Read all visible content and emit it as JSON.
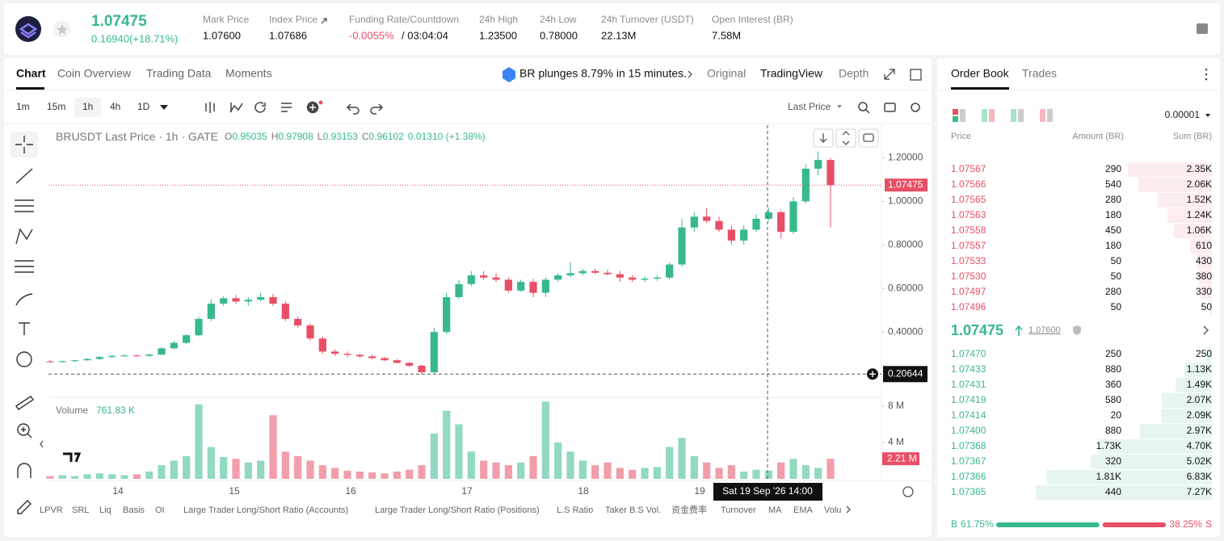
{
  "header": {
    "price": "1.07475",
    "change": "0.16940(+18.71%)",
    "stats": [
      {
        "label": "Mark Price",
        "value": "1.07600"
      },
      {
        "label": "Index Price",
        "value": "1.07686"
      },
      {
        "label": "Funding Rate/Countdown",
        "value": "-0.0055%",
        "extra": "/ 03:04:04"
      },
      {
        "label": "24h High",
        "value": "1.23500"
      },
      {
        "label": "24h Low",
        "value": "0.78000"
      },
      {
        "label": "24h Turnover (USDT)",
        "value": "22.13M"
      },
      {
        "label": "Open Interest (BR)",
        "value": "7.58M"
      }
    ]
  },
  "chart_tabs": [
    "Chart",
    "Coin Overview",
    "Trading Data",
    "Moments"
  ],
  "news": "BR plunges 8.79% in 15 minutes.",
  "view_tabs": [
    "Original",
    "TradingView",
    "Depth"
  ],
  "intervals": [
    "1m",
    "15m",
    "1h",
    "4h",
    "1D"
  ],
  "price_type": "Last Price",
  "legend": {
    "symbol": "BRUSDT Last Price · 1h · GATE",
    "fields": [
      [
        "O",
        "0.95035"
      ],
      [
        "H",
        "0.97908"
      ],
      [
        "L",
        "0.93153"
      ],
      [
        "C",
        "0.96102"
      ]
    ],
    "change": "0.01310 (+1.38%)"
  },
  "volume_title": "Volume",
  "volume_value": "761.83 K",
  "indicators": [
    "LPVR",
    "SRL",
    "Liq",
    "Basis",
    "OI",
    "Large Trader Long/Short Ratio (Accounts)",
    "Large Trader Long/Short Ratio (Positions)",
    "L.S Ratio",
    "Taker B.S Vol.",
    "资金费率",
    "Turnover",
    "MA",
    "EMA",
    "Volu"
  ],
  "chart_data": {
    "type": "candlestick",
    "up_color": "#37b98a",
    "down_color": "#e84f65",
    "ylim": [
      0.1,
      1.35
    ],
    "yticks": [
      {
        "value": 1.2,
        "label": "1.20000"
      },
      {
        "value": 1,
        "label": "1.00000"
      },
      {
        "value": 0.8,
        "label": "0.80000"
      },
      {
        "value": 0.6,
        "label": "0.60000"
      },
      {
        "value": 0.4,
        "label": "0.40000"
      }
    ],
    "x_labels": [
      "14",
      "15",
      "16",
      "17",
      "18",
      "19"
    ],
    "ohlc": [
      [
        0.265,
        0.27,
        0.26,
        0.262
      ],
      [
        0.262,
        0.268,
        0.258,
        0.266
      ],
      [
        0.266,
        0.272,
        0.262,
        0.27
      ],
      [
        0.27,
        0.28,
        0.268,
        0.276
      ],
      [
        0.276,
        0.29,
        0.272,
        0.285
      ],
      [
        0.285,
        0.295,
        0.28,
        0.29
      ],
      [
        0.29,
        0.298,
        0.286,
        0.292
      ],
      [
        0.292,
        0.296,
        0.288,
        0.29
      ],
      [
        0.29,
        0.3,
        0.286,
        0.296
      ],
      [
        0.296,
        0.33,
        0.292,
        0.325
      ],
      [
        0.325,
        0.36,
        0.32,
        0.35
      ],
      [
        0.35,
        0.39,
        0.345,
        0.385
      ],
      [
        0.385,
        0.47,
        0.38,
        0.46
      ],
      [
        0.46,
        0.55,
        0.45,
        0.53
      ],
      [
        0.53,
        0.565,
        0.52,
        0.555
      ],
      [
        0.555,
        0.57,
        0.53,
        0.54
      ],
      [
        0.54,
        0.56,
        0.52,
        0.548
      ],
      [
        0.548,
        0.58,
        0.54,
        0.56
      ],
      [
        0.56,
        0.575,
        0.52,
        0.53
      ],
      [
        0.53,
        0.54,
        0.45,
        0.46
      ],
      [
        0.46,
        0.47,
        0.42,
        0.43
      ],
      [
        0.43,
        0.44,
        0.36,
        0.37
      ],
      [
        0.37,
        0.38,
        0.3,
        0.31
      ],
      [
        0.31,
        0.32,
        0.29,
        0.3
      ],
      [
        0.3,
        0.31,
        0.285,
        0.295
      ],
      [
        0.295,
        0.3,
        0.28,
        0.288
      ],
      [
        0.288,
        0.295,
        0.275,
        0.28
      ],
      [
        0.28,
        0.285,
        0.265,
        0.27
      ],
      [
        0.27,
        0.275,
        0.255,
        0.258
      ],
      [
        0.258,
        0.262,
        0.24,
        0.245
      ],
      [
        0.245,
        0.25,
        0.206,
        0.215
      ],
      [
        0.215,
        0.42,
        0.21,
        0.4
      ],
      [
        0.4,
        0.58,
        0.39,
        0.56
      ],
      [
        0.56,
        0.64,
        0.55,
        0.62
      ],
      [
        0.62,
        0.68,
        0.61,
        0.66
      ],
      [
        0.66,
        0.68,
        0.64,
        0.65
      ],
      [
        0.65,
        0.67,
        0.63,
        0.64
      ],
      [
        0.64,
        0.65,
        0.58,
        0.59
      ],
      [
        0.59,
        0.64,
        0.585,
        0.63
      ],
      [
        0.63,
        0.645,
        0.56,
        0.58
      ],
      [
        0.58,
        0.65,
        0.56,
        0.64
      ],
      [
        0.64,
        0.67,
        0.63,
        0.66
      ],
      [
        0.66,
        0.72,
        0.65,
        0.67
      ],
      [
        0.67,
        0.69,
        0.66,
        0.68
      ],
      [
        0.68,
        0.69,
        0.665,
        0.672
      ],
      [
        0.672,
        0.685,
        0.66,
        0.665
      ],
      [
        0.665,
        0.68,
        0.63,
        0.65
      ],
      [
        0.65,
        0.66,
        0.63,
        0.64
      ],
      [
        0.64,
        0.655,
        0.63,
        0.645
      ],
      [
        0.645,
        0.66,
        0.635,
        0.65
      ],
      [
        0.65,
        0.72,
        0.64,
        0.71
      ],
      [
        0.71,
        0.92,
        0.7,
        0.88
      ],
      [
        0.88,
        0.95,
        0.86,
        0.93
      ],
      [
        0.93,
        0.97,
        0.9,
        0.91
      ],
      [
        0.91,
        0.93,
        0.86,
        0.87
      ],
      [
        0.87,
        0.89,
        0.8,
        0.82
      ],
      [
        0.82,
        0.89,
        0.8,
        0.87
      ],
      [
        0.87,
        0.94,
        0.86,
        0.92
      ],
      [
        0.92,
        0.97,
        0.91,
        0.95
      ],
      [
        0.95,
        0.96,
        0.83,
        0.86
      ],
      [
        0.86,
        1.02,
        0.85,
        1.0
      ],
      [
        1.0,
        1.17,
        0.99,
        1.15
      ],
      [
        1.15,
        1.23,
        1.12,
        1.19
      ],
      [
        1.19,
        1.2,
        0.88,
        1.07475
      ]
    ],
    "volume": [
      300000,
      400000,
      300000,
      500000,
      600000,
      500000,
      400000,
      500000,
      800000,
      1500000,
      2000000,
      2500000,
      8200000,
      3500000,
      2400000,
      2200000,
      1800000,
      2000000,
      7000000,
      3000000,
      2500000,
      2000000,
      1500000,
      1200000,
      900000,
      800000,
      700000,
      600000,
      800000,
      1000000,
      1500000,
      5000000,
      7500000,
      6000000,
      3000000,
      2000000,
      1800000,
      1500000,
      1800000,
      2500000,
      8500000,
      4000000,
      3000000,
      2000000,
      1500000,
      1800000,
      1200000,
      1000000,
      1200000,
      1300000,
      3500000,
      4500000,
      2500000,
      1800000,
      1200000,
      1500000,
      800000,
      1000000,
      900000,
      1800000,
      2200000,
      1500000,
      1200000,
      2210000
    ],
    "volume_lim": [
      0,
      8800000
    ],
    "volume_ticks": [
      {
        "value": 8000000,
        "label": "8 M"
      },
      {
        "value": 4000000,
        "label": "4 M"
      }
    ],
    "volume_last_label": "2.21 M",
    "last_price": {
      "value": 1.07475,
      "label": "1.07475"
    },
    "crosshair": {
      "value": 0.20644,
      "label": "0.20644",
      "time": "Sat 19 Sep '26  14:00"
    }
  },
  "order_book": {
    "tabs": [
      "Order Book",
      "Trades"
    ],
    "precision": "0.00001",
    "columns": [
      "Price",
      "Amount (BR)",
      "Sum (BR)"
    ],
    "asks": [
      {
        "price": "1.07567",
        "amount": "290",
        "sum": {
          "value": 2350,
          "label": "2.35K"
        }
      },
      {
        "price": "1.07566",
        "amount": "540",
        "sum": {
          "value": 2060,
          "label": "2.06K"
        }
      },
      {
        "price": "1.07565",
        "amount": "280",
        "sum": {
          "value": 1520,
          "label": "1.52K"
        }
      },
      {
        "price": "1.07563",
        "amount": "180",
        "sum": {
          "value": 1240,
          "label": "1.24K"
        }
      },
      {
        "price": "1.07558",
        "amount": "450",
        "sum": {
          "value": 1060,
          "label": "1.06K"
        }
      },
      {
        "price": "1.07557",
        "amount": "180",
        "sum": 610
      },
      {
        "price": "1.07533",
        "amount": "50",
        "sum": 430
      },
      {
        "price": "1.07530",
        "amount": "50",
        "sum": 380
      },
      {
        "price": "1.07497",
        "amount": "280",
        "sum": 330
      },
      {
        "price": "1.07496",
        "amount": "50",
        "sum": 50
      }
    ],
    "mid": {
      "price": "1.07475",
      "index": "1.07600"
    },
    "bids": [
      {
        "price": "1.07470",
        "amount": "250",
        "sum": 250
      },
      {
        "price": "1.07433",
        "amount": "880",
        "sum": {
          "value": 1130,
          "label": "1.13K"
        }
      },
      {
        "price": "1.07431",
        "amount": "360",
        "sum": {
          "value": 1490,
          "label": "1.49K"
        }
      },
      {
        "price": "1.07419",
        "amount": "580",
        "sum": {
          "value": 2070,
          "label": "2.07K"
        }
      },
      {
        "price": "1.07414",
        "amount": "20",
        "sum": {
          "value": 2090,
          "label": "2.09K"
        }
      },
      {
        "price": "1.07400",
        "amount": "880",
        "sum": {
          "value": 2970,
          "label": "2.97K"
        }
      },
      {
        "price": "1.07368",
        "amount": "1.73K",
        "sum": {
          "value": 4700,
          "label": "4.70K"
        }
      },
      {
        "price": "1.07367",
        "amount": "320",
        "sum": {
          "value": 5020,
          "label": "5.02K"
        }
      },
      {
        "price": "1.07366",
        "amount": "1.81K",
        "sum": {
          "value": 6830,
          "label": "6.83K"
        }
      },
      {
        "price": "1.07365",
        "amount": "440",
        "sum": {
          "value": 7270,
          "label": "7.27K"
        }
      }
    ],
    "ratio": {
      "buy_tag": "B",
      "buy": {
        "value": 61.75,
        "label": "61.75%"
      },
      "sell": {
        "value": 38.25,
        "label": "38.25%"
      },
      "sell_tag": "S"
    }
  }
}
